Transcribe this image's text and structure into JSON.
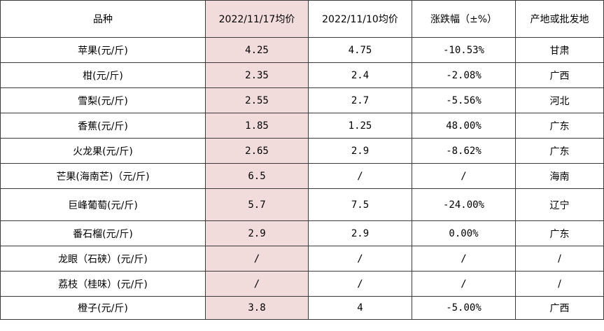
{
  "table": {
    "header": {
      "variety": "品种",
      "avg_current": "2022/11/17均价",
      "avg_previous": "2022/11/10均价",
      "change": "涨跌幅（±%）",
      "origin": "产地或批发地"
    },
    "colors": {
      "highlight": "#f2dcdb",
      "border": "#3a3a3a"
    },
    "rows": [
      {
        "variety": "苹果(元/斤)",
        "avg_current": "4.25",
        "avg_previous": "4.75",
        "change": "-10.53%",
        "origin": "甘肃"
      },
      {
        "variety": "柑(元/斤)",
        "avg_current": "2.35",
        "avg_previous": "2.4",
        "change": "-2.08%",
        "origin": "广西"
      },
      {
        "variety": "雪梨(元/斤)",
        "avg_current": "2.55",
        "avg_previous": "2.7",
        "change": "-5.56%",
        "origin": "河北"
      },
      {
        "variety": "香蕉(元/斤)",
        "avg_current": "1.85",
        "avg_previous": "1.25",
        "change": "48.00%",
        "origin": "广东"
      },
      {
        "variety": "火龙果(元/斤)",
        "avg_current": "2.65",
        "avg_previous": "2.9",
        "change": "-8.62%",
        "origin": "广东"
      },
      {
        "variety": "芒果(海南芒)（元/斤)",
        "avg_current": "6.5",
        "avg_previous": "/",
        "change": "/",
        "origin": "海南"
      },
      {
        "variety": "巨峰葡萄(元/斤)",
        "avg_current": "5.7",
        "avg_previous": "7.5",
        "change": "-24.00%",
        "origin": "辽宁"
      },
      {
        "variety": "番石榴(元/斤)",
        "avg_current": "2.9",
        "avg_previous": "2.9",
        "change": "0.00%",
        "origin": "广东"
      },
      {
        "variety": "龙眼（石硖）(元/斤)",
        "avg_current": "/",
        "avg_previous": "/",
        "change": "/",
        "origin": "/"
      },
      {
        "variety": "荔枝（桂味）(元/斤)",
        "avg_current": "/",
        "avg_previous": "/",
        "change": "/",
        "origin": "/"
      },
      {
        "variety": "橙子(元/斤)",
        "avg_current": "3.8",
        "avg_previous": "4",
        "change": "-5.00%",
        "origin": "广西"
      }
    ]
  }
}
